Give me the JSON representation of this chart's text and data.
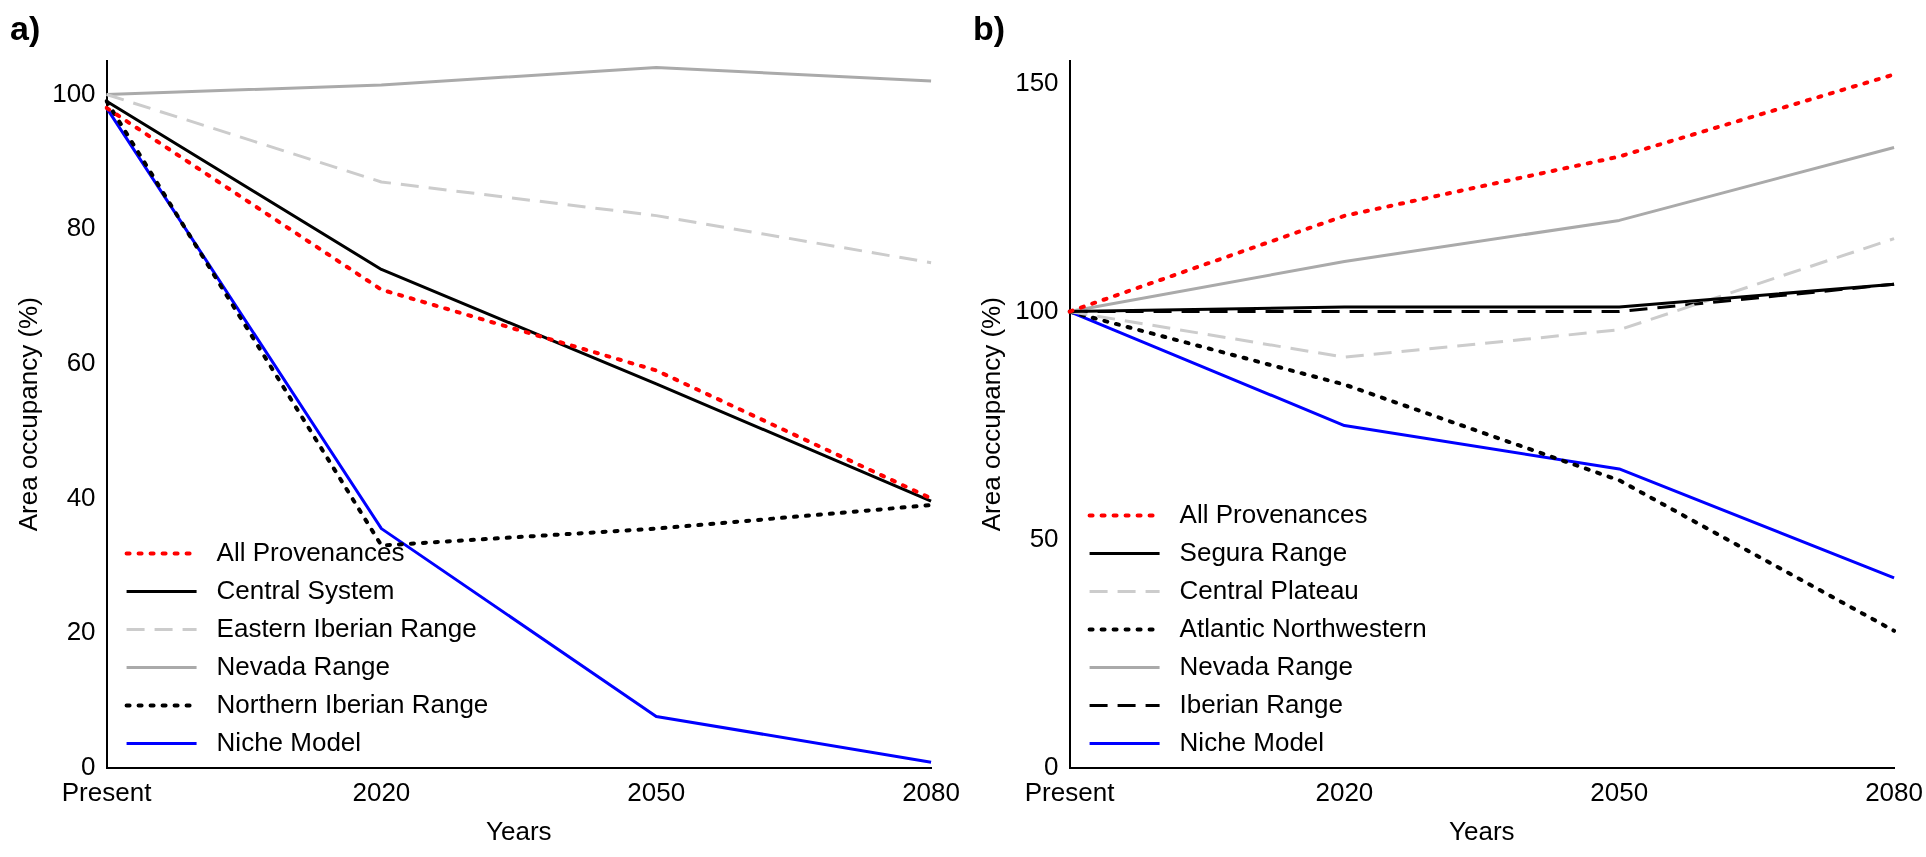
{
  "chart_data": [
    {
      "type": "line",
      "title": "a)",
      "xlabel": "Years",
      "ylabel": "Area occupancy (%)",
      "categories": [
        "Present",
        "2020",
        "2050",
        "2080"
      ],
      "ylim": [
        0,
        105
      ],
      "yticks": [
        0,
        20,
        40,
        60,
        80,
        100
      ],
      "grid": false,
      "legend": "bottom left",
      "marker": "none",
      "series": [
        {
          "name": "All Provenances",
          "color": "#ff0000",
          "line_style": "dotted",
          "values": [
            98,
            71,
            59,
            40
          ]
        },
        {
          "name": "Central System",
          "color": "#000000",
          "line_style": "solid",
          "values": [
            99,
            74,
            57,
            39.6
          ]
        },
        {
          "name": "Eastern Iberian Range",
          "color": "#cccccc",
          "line_style": "dashed",
          "values": [
            100,
            87,
            82,
            75
          ]
        },
        {
          "name": "Nevada Range",
          "color": "#aaaaaa",
          "line_style": "solid",
          "values": [
            100,
            101.4,
            104,
            102
          ]
        },
        {
          "name": "Northern Iberian Range",
          "color": "#000000",
          "line_style": "dotted",
          "values": [
            99,
            33,
            35.5,
            39
          ]
        },
        {
          "name": "Niche Model",
          "color": "#0000ff",
          "line_style": "solid",
          "values": [
            98,
            35.5,
            7.6,
            0.8
          ]
        }
      ]
    },
    {
      "type": "line",
      "title": "b)",
      "xlabel": "Years",
      "ylabel": "Area occupancy (%)",
      "categories": [
        "Present",
        "2020",
        "2050",
        "2080"
      ],
      "ylim": [
        0,
        155
      ],
      "yticks": [
        0,
        50,
        100,
        150
      ],
      "grid": false,
      "legend": "bottom left",
      "marker": "none",
      "series": [
        {
          "name": "All Provenances",
          "color": "#ff0000",
          "line_style": "dotted",
          "values": [
            100,
            121,
            134,
            152
          ]
        },
        {
          "name": "Segura Range",
          "color": "#000000",
          "line_style": "solid",
          "values": [
            100,
            101,
            101,
            106
          ]
        },
        {
          "name": "Central Plateau",
          "color": "#cccccc",
          "line_style": "dashed",
          "values": [
            100,
            90,
            96,
            116
          ]
        },
        {
          "name": "Atlantic Northwestern",
          "color": "#000000",
          "line_style": "dotted",
          "values": [
            100,
            84,
            63,
            30
          ]
        },
        {
          "name": "Nevada Range",
          "color": "#aaaaaa",
          "line_style": "solid",
          "values": [
            100,
            111,
            120,
            136
          ]
        },
        {
          "name": "Iberian Range",
          "color": "#000000",
          "line_style": "dashed",
          "values": [
            100,
            100,
            100,
            106
          ]
        },
        {
          "name": "Niche Model",
          "color": "#0000ff",
          "line_style": "solid",
          "values": [
            100,
            75,
            65.5,
            41.6
          ]
        }
      ]
    }
  ]
}
